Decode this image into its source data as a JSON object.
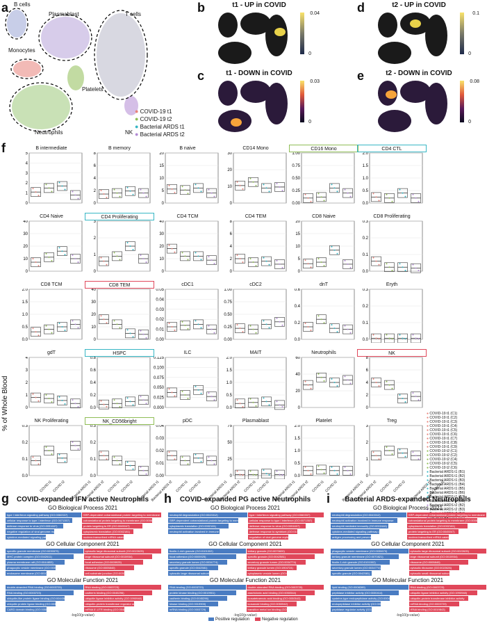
{
  "panels": {
    "a": "a",
    "b": "b",
    "c": "c",
    "d": "d",
    "e": "e",
    "f": "f",
    "g": "g",
    "h": "h",
    "i": "i"
  },
  "umap": {
    "clusters": [
      "B cells",
      "Plasmablast",
      "T cells",
      "Monocytes",
      "Platelets",
      "Neutrophils",
      "NK"
    ],
    "legend": [
      {
        "label": "COVID-19 t1",
        "color": "#e8827a"
      },
      {
        "label": "COVID-19 t2",
        "color": "#8fbd55"
      },
      {
        "label": "Bacterial ARDS t1",
        "color": "#36b6c4"
      },
      {
        "label": "Bacterial ARDS t2",
        "color": "#b28bd4"
      }
    ]
  },
  "density": [
    {
      "id": "b",
      "title": "t1 - UP in COVID",
      "max": "0.04",
      "min": "0"
    },
    {
      "id": "c",
      "title": "t1 - DOWN in COVID",
      "max": "0.03",
      "min": "0"
    },
    {
      "id": "d",
      "title": "t2 - UP in COVID",
      "max": "0.1",
      "min": "0"
    },
    {
      "id": "e",
      "title": "t2 - DOWN in COVID",
      "max": "0.08",
      "min": "0"
    }
  ],
  "boxplots": {
    "ylabel": "% of Whole Blood",
    "groups": [
      "COVID t1",
      "COVID t2",
      "Bacterial ARDS t1",
      "Bacterial ARDS t2"
    ],
    "cells": [
      {
        "title": "B intermediate",
        "ticks": [
          "5",
          "4",
          "3",
          "2",
          "1",
          "0"
        ],
        "frame": "",
        "med": [
          0.22,
          0.3,
          0.34,
          0.16
        ]
      },
      {
        "title": "B memory",
        "ticks": [
          "8",
          "6",
          "4",
          "2",
          "0"
        ],
        "frame": "",
        "med": [
          0.18,
          0.2,
          0.24,
          0.2
        ]
      },
      {
        "title": "B naive",
        "ticks": [
          "20",
          "15",
          "10",
          "5",
          "0"
        ],
        "frame": "",
        "med": [
          0.28,
          0.26,
          0.3,
          0.2
        ]
      },
      {
        "title": "CD14 Mono",
        "ticks": [
          "30",
          "20",
          "10",
          "0"
        ],
        "frame": "",
        "med": [
          0.35,
          0.42,
          0.3,
          0.32
        ]
      },
      {
        "title": "CD16 Mono",
        "ticks": [
          "1.00",
          "0.75",
          "0.50",
          "0.25",
          "0.00"
        ],
        "frame": "#8fbd55",
        "med": [
          0.1,
          0.12,
          0.3,
          0.2
        ]
      },
      {
        "title": "CD4 CTL",
        "ticks": [
          "2.0",
          "1.5",
          "1.0",
          "0.5",
          "0.0"
        ],
        "frame": "#36b6c4",
        "med": [
          0.12,
          0.1,
          0.2,
          0.1
        ]
      },
      {
        "title": "CD4 Naive",
        "ticks": [
          "40",
          "30",
          "20",
          "10",
          "0"
        ],
        "frame": "",
        "med": [
          0.18,
          0.28,
          0.4,
          0.25
        ]
      },
      {
        "title": "CD4 Proliferating",
        "ticks": [
          "3",
          "2",
          "1",
          "0"
        ],
        "frame": "#36b6c4",
        "med": [
          0.2,
          0.3,
          0.5,
          0.25
        ]
      },
      {
        "title": "CD4 TCM",
        "ticks": [
          "40",
          "30",
          "20",
          "10",
          "0"
        ],
        "frame": "",
        "med": [
          0.45,
          0.3,
          0.3,
          0.22
        ]
      },
      {
        "title": "CD4 TEM",
        "ticks": [
          "8",
          "6",
          "4",
          "2",
          "0"
        ],
        "frame": "",
        "med": [
          0.25,
          0.18,
          0.2,
          0.14
        ]
      },
      {
        "title": "CD8 Naive",
        "ticks": [
          "20",
          "15",
          "10",
          "5",
          "0"
        ],
        "frame": "",
        "med": [
          0.15,
          0.18,
          0.42,
          0.14
        ]
      },
      {
        "title": "CD8 Proliferating",
        "ticks": [
          "0.3",
          "0.2",
          "0.1",
          "0.0"
        ],
        "frame": "",
        "med": [
          0.2,
          0.08,
          0.08,
          0.06
        ]
      },
      {
        "title": "CD8 TCM",
        "ticks": [
          "2.0",
          "1.5",
          "1.0",
          "0.5",
          "0.0"
        ],
        "frame": "",
        "med": [
          0.15,
          0.2,
          0.25,
          0.3
        ]
      },
      {
        "title": "CD8 TEM",
        "ticks": [
          "40",
          "30",
          "20",
          "10",
          "0"
        ],
        "frame": "#e0475a",
        "med": [
          0.4,
          0.3,
          0.12,
          0.1
        ]
      },
      {
        "title": "cDC1",
        "ticks": [
          "0.05",
          "0.04",
          "0.03",
          "0.02",
          "0.01",
          "0.00"
        ],
        "frame": "",
        "med": [
          0.25,
          0.28,
          0.3,
          0.2
        ]
      },
      {
        "title": "cDC2",
        "ticks": [
          "1.00",
          "0.75",
          "0.50",
          "0.25",
          "0.00"
        ],
        "frame": "",
        "med": [
          0.22,
          0.2,
          0.3,
          0.35
        ]
      },
      {
        "title": "dnT",
        "ticks": [
          "0.6",
          "0.4",
          "0.2",
          "0.0"
        ],
        "frame": "",
        "med": [
          0.25,
          0.4,
          0.22,
          0.2
        ]
      },
      {
        "title": "Eryth",
        "ticks": [
          "0.3",
          "0.2",
          "0.1",
          "0.0"
        ],
        "frame": "",
        "med": [
          0.02,
          0.02,
          0.02,
          0.02
        ]
      },
      {
        "title": "gdT",
        "ticks": [
          "4",
          "3",
          "2",
          "1",
          "0"
        ],
        "frame": "",
        "med": [
          0.2,
          0.18,
          0.14,
          0.08
        ]
      },
      {
        "title": "HSPC",
        "ticks": [
          "0.8",
          "0.6",
          "0.4",
          "0.2",
          "0.0"
        ],
        "frame": "#36b6c4",
        "med": [
          0.06,
          0.08,
          0.12,
          0.15
        ]
      },
      {
        "title": "ILC",
        "ticks": [
          "0.125",
          "0.100",
          "0.075",
          "0.050",
          "0.025",
          "0.000"
        ],
        "frame": "",
        "med": [
          0.3,
          0.25,
          0.35,
          0.22
        ]
      },
      {
        "title": "MAIT",
        "ticks": [
          "2.0",
          "1.5",
          "1.0",
          "0.5",
          "0.0"
        ],
        "frame": "",
        "med": [
          0.08,
          0.1,
          0.12,
          0.05
        ]
      },
      {
        "title": "Neutrophils",
        "ticks": [
          "60",
          "40",
          "20",
          "0"
        ],
        "frame": "",
        "med": [
          0.45,
          0.6,
          0.5,
          0.55
        ]
      },
      {
        "title": "NK",
        "ticks": [
          "8",
          "6",
          "4",
          "2",
          "0"
        ],
        "frame": "#e0475a",
        "med": [
          0.5,
          0.45,
          0.18,
          0.22
        ]
      },
      {
        "title": "NK Proliferating",
        "ticks": [
          "0.3",
          "0.2",
          "0.1",
          "0.0"
        ],
        "frame": "",
        "med": [
          0.3,
          0.5,
          0.35,
          0.6
        ]
      },
      {
        "title": "NK_CD56bright",
        "ticks": [
          "0.3",
          "0.2",
          "0.1",
          "0.0"
        ],
        "frame": "#8fbd55",
        "med": [
          0.4,
          0.3,
          0.2,
          0.1
        ]
      },
      {
        "title": "pDC",
        "ticks": [
          "0.04",
          "0.03",
          "0.02",
          "0.01",
          "0.00"
        ],
        "frame": "",
        "med": [
          0.4,
          0.3,
          0.35,
          0.3
        ]
      },
      {
        "title": "Plasmablast",
        "ticks": [
          "75",
          "50",
          "25",
          "0"
        ],
        "frame": "",
        "med": [
          0.02,
          0.02,
          0.04,
          0.02
        ]
      },
      {
        "title": "Platelet",
        "ticks": [
          "2.0",
          "1.5",
          "1.0",
          "0.5",
          "0.0"
        ],
        "frame": "",
        "med": [
          0.1,
          0.12,
          0.1,
          0.1
        ]
      },
      {
        "title": "Treg",
        "ticks": [
          "3",
          "2",
          "1",
          "0"
        ],
        "frame": "",
        "med": [
          0.4,
          0.5,
          0.45,
          0.4
        ]
      }
    ],
    "legend": [
      "COVID-19 t1 (C1)",
      "COVID-19 t1 (C2)",
      "COVID-19 t1 (C3)",
      "COVID-19 t1 (C4)",
      "COVID-19 t1 (C5)",
      "COVID-19 t1 (C6)",
      "COVID-19 t1 (C7)",
      "COVID-19 t1 (C8)",
      "COVID-19 t1 (C9)",
      "COVID-19 t2 (C1)",
      "COVID-19 t2 (C2)",
      "COVID-19 t2 (C4)",
      "COVID-19 t2 (C5)",
      "COVID-19 t2 (C6)",
      "Bacterial ARDS t1 (B1)",
      "Bacterial ARDS t1 (B2)",
      "Bacterial ARDS t1 (B3)",
      "Bacterial ARDS t1 (B4)",
      "Bacterial ARDS t1 (B5)",
      "Bacterial ARDS t1 (B6)",
      "Bacterial ARDS t1 (B7)",
      "Bacterial ARDS t2 (B1)",
      "Bacterial ARDS t2 (B2)",
      "Bacterial ARDS t2 (B3)",
      "Bacterial ARDS t2 (B4)",
      "Bacterial ARDS t2 (B7)"
    ]
  },
  "go": [
    {
      "id": "g",
      "title": "COVID-expanded IFN active Neutrophils",
      "sections": [
        {
          "name": "GO Biological Process 2021",
          "pos": [
            "type I interferon signaling pathway (GO:0060337)",
            "cellular response to type I interferon (GO:0071357)",
            "defense response to virus (GO:0051607)",
            "negative regulation of viral genome replication",
            "cytokine-mediated signaling pathway (GO:0019221)"
          ],
          "neg": [
            "SRP-dependent cotranslational protein targeting to membrane",
            "cotranslational protein targeting to membrane (GO:0006613)",
            "protein targeting to ER (GO:0045047)",
            "cytoplasmic translation (GO:0002181)",
            "nuclear-transcribed mRNA catabolic process"
          ]
        },
        {
          "name": "GO Cellular Component 2021",
          "pos": [
            "specific granule membrane (GO:0035579)",
            "MHC protein complex (GO:0042611)",
            "plasma membrane raft (GO:0044853)",
            "phagocytic vesicle membrane (GO:0030670)",
            "endosome membrane (GO:0010008)"
          ],
          "neg": [
            "cytosolic large ribosomal subunit (GO:0022625)",
            "large ribosomal subunit (GO:0015934)",
            "focal adhesion (GO:0005925)",
            "ribosome (GO:0005840)",
            "cell-substrate junction (GO:0030055)"
          ]
        },
        {
          "name": "GO Molecular Function 2021",
          "pos": [
            "double-stranded RNA binding (GO:0003725)",
            "RNA binding (GO:0003723)",
            "ubiquitin-like protein ligase binding (GO:0044389)",
            "ubiquitin protein ligase binding (GO:0031625)",
            "CARD domain binding (GO:0050700)"
          ],
          "neg": [
            "RNA binding (GO:0003723)",
            "cadherin binding (GO:0045296)",
            "ubiquitin ligase inhibitor activity (GO:1990948)",
            "ubiquitin-protein transferase regulator activity",
            "mRNA 5'-UTR binding (GO:0048027)"
          ]
        }
      ],
      "xlabel": "-log10(p-value)"
    },
    {
      "id": "h",
      "title": "COVID-expanded PG active Neutrophils",
      "sections": [
        {
          "name": "GO Biological Process 2021",
          "pos": [
            "neutrophil degranulation (GO:0043312)",
            "SRP-dependent cotranslational protein targeting to membrane",
            "cytoplasmic translation (GO:0002181)",
            "neutrophil activation involved in immune response"
          ],
          "neg": [
            "type I interferon signaling pathway (GO:0060337)",
            "cellular response to type I interferon (GO:0071357)",
            "defense response to virus (GO:0051607)",
            "defense response to symbiont (GO:0140546)",
            "regulation of viral genome replication (GO:0045069)"
          ]
        },
        {
          "name": "GO Cellular Component 2021",
          "pos": [
            "ficolin-1-rich granule (GO:0101002)",
            "focal adhesion (GO:0005925)",
            "secretory granule lumen (GO:0034774)",
            "specific granule (GO:0042581)",
            "cytosolic large ribosomal subunit (GO:0022625)"
          ],
          "neg": [
            "tertiary granule (GO:0070820)",
            "specific granule (GO:0042581)",
            "secretory granule lumen (GO:0034774)",
            "tertiary granule lumen (GO:1904724)",
            "cytoplasmic vesicle lumen (GO:0060205)"
          ]
        },
        {
          "name": "GO Molecular Function 2021",
          "pos": [
            "RNA binding (GO:0003723)",
            "protein kinase binding (GO:0019901)",
            "cadherin binding (GO:0045296)",
            "kinase binding (GO:0019900)",
            "mRNA binding (GO:0003729)"
          ],
          "neg": [
            "double-stranded RNA binding (GO:0003725)",
            "arachidonic acid binding (GO:0050544)",
            "icosatetraenoic acid binding (GO:0050543)",
            "icosanoid binding (GO:0050542)",
            "transition metal ion binding (GO:0046914)"
          ]
        }
      ],
      "xlabel": "-log10(p-value)"
    },
    {
      "id": "i",
      "title": "Bacterial ARDS-expanded Neutrophils",
      "sections": [
        {
          "name": "GO Biological Process 2021",
          "pos": [
            "neutrophil degranulation (GO:0043312)",
            "neutrophil activation involved in immune response",
            "neutrophil mediated immunity (GO:0002446)",
            "cytokine-mediated signaling pathway (GO:0019221)",
            "antigen processing and presentation of exogenous"
          ],
          "neg": [
            "SRP-dependent cotranslational protein targeting to membrane",
            "cotranslational protein targeting to membrane (GO:0006613)",
            "cytoplasmic translation (GO:0002181)",
            "protein targeting to ER (GO:0045047)",
            "nuclear-transcribed mRNA catabolic process"
          ]
        },
        {
          "name": "GO Cellular Component 2021",
          "pos": [
            "phagocytic vesicle membrane (GO:0030670)",
            "tertiary granule membrane (GO:0070821)",
            "ficolin-1-rich granule (GO:0101002)",
            "secretory granule lumen (GO:0034774)",
            "specific granule (GO:0042581)"
          ],
          "neg": [
            "cytosolic large ribosomal subunit (GO:0022625)",
            "large ribosomal subunit (GO:0015934)",
            "ribosome (GO:0005840)",
            "cytosolic ribosome (GO:0022626)",
            "cytosolic small ribosomal subunit (GO:0022627)"
          ]
        },
        {
          "name": "GO Molecular Function 2021",
          "pos": [
            "lipid binding (GO:0008289)",
            "peptidase inhibitor activity (GO:0030414)",
            "cysteine-type endopeptidase activity (GO:0004197)",
            "endopeptidase inhibitor activity (GO:0004866)",
            "peptidase regulator activity (GO:0061134)"
          ],
          "neg": [
            "RNA binding (GO:0003723)",
            "ubiquitin ligase inhibitor activity (GO:1990948)",
            "ubiquitin-protein transferase inhibitor activity",
            "mRNA binding (GO:0003729)",
            "rRNA binding (GO:0019843)"
          ]
        }
      ],
      "xlabel": "-log10(p-value)"
    }
  ],
  "go_legend": {
    "pos": "Positive regulation",
    "neg": "Negative regulation",
    "pos_color": "#4a7cc2",
    "neg_color": "#e0475a"
  }
}
